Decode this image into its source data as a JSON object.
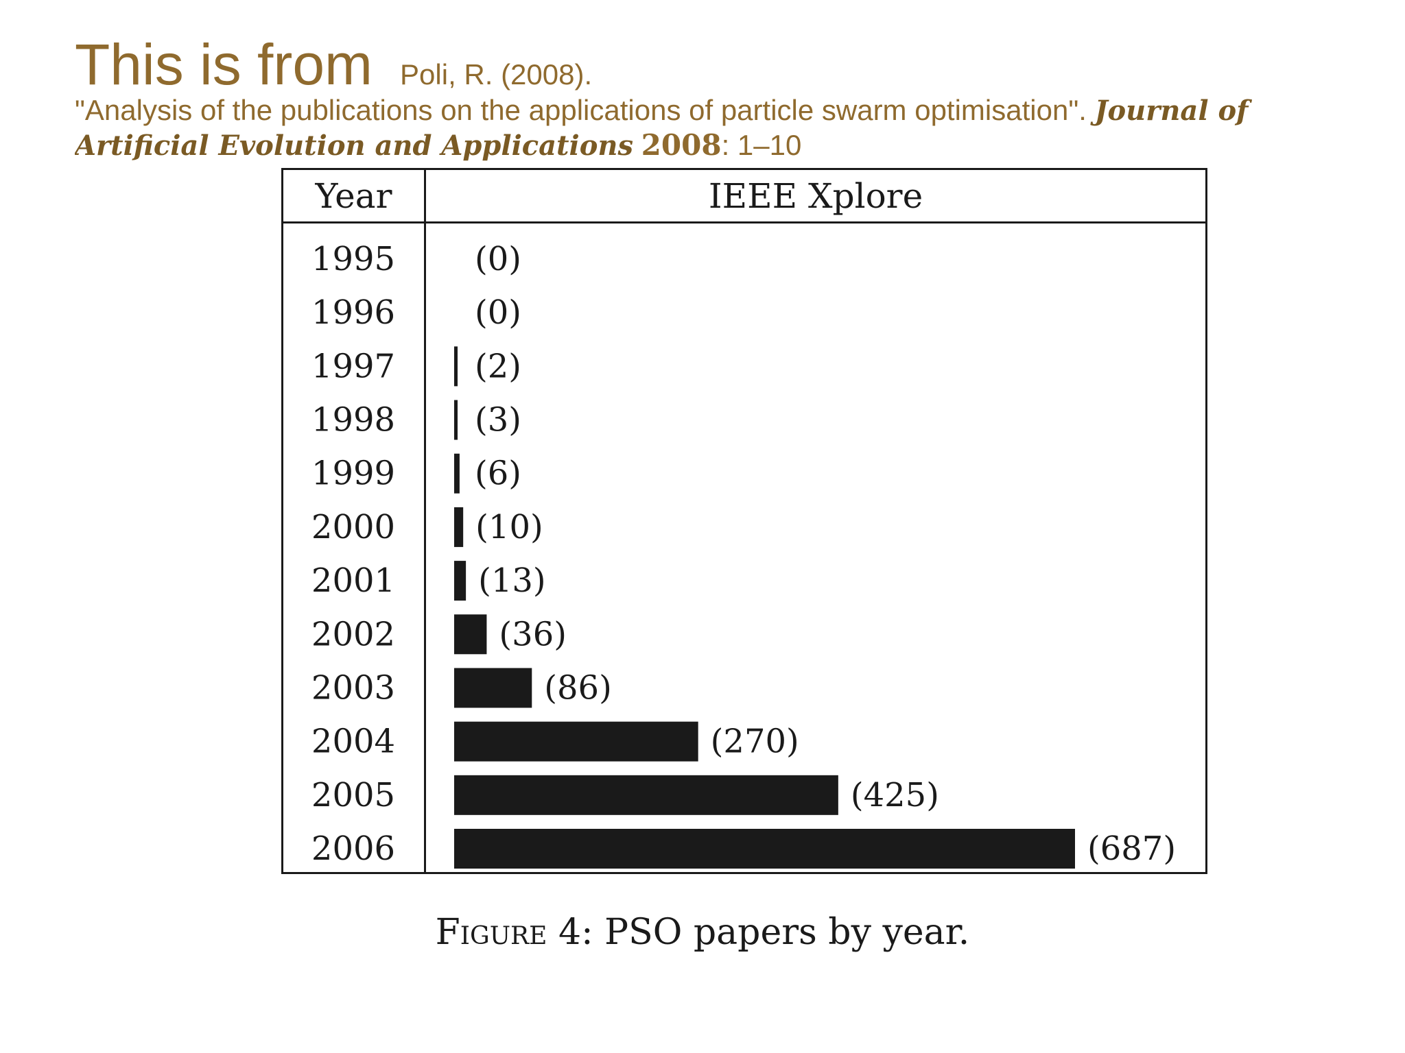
{
  "header": {
    "title": "This is from",
    "citation": "Poli, R. (2008).",
    "reference": "\"Analysis of the publications on the applications of particle swarm optimisation\". ",
    "journal": "Journal of Artificial Evolution and Applications",
    "year": "2008",
    "pages": ": 1–10"
  },
  "chart_data": {
    "type": "bar",
    "orientation": "horizontal",
    "categories": [
      "1995",
      "1996",
      "1997",
      "1998",
      "1999",
      "2000",
      "2001",
      "2002",
      "2003",
      "2004",
      "2005",
      "2006"
    ],
    "values": [
      0,
      0,
      2,
      3,
      6,
      10,
      13,
      36,
      86,
      270,
      425,
      687
    ],
    "data_labels": [
      "(0)",
      "(0)",
      "(2)",
      "(3)",
      "(6)",
      "(10)",
      "(13)",
      "(36)",
      "(86)",
      "(270)",
      "(425)",
      "(687)"
    ],
    "col_header_year": "Year",
    "col_header_source": "IEEE Xplore",
    "xlim": [
      0,
      687
    ],
    "bar_color": "#1a1a1a",
    "caption_label": "Figure 4",
    "caption_text": ": PSO papers by year."
  }
}
